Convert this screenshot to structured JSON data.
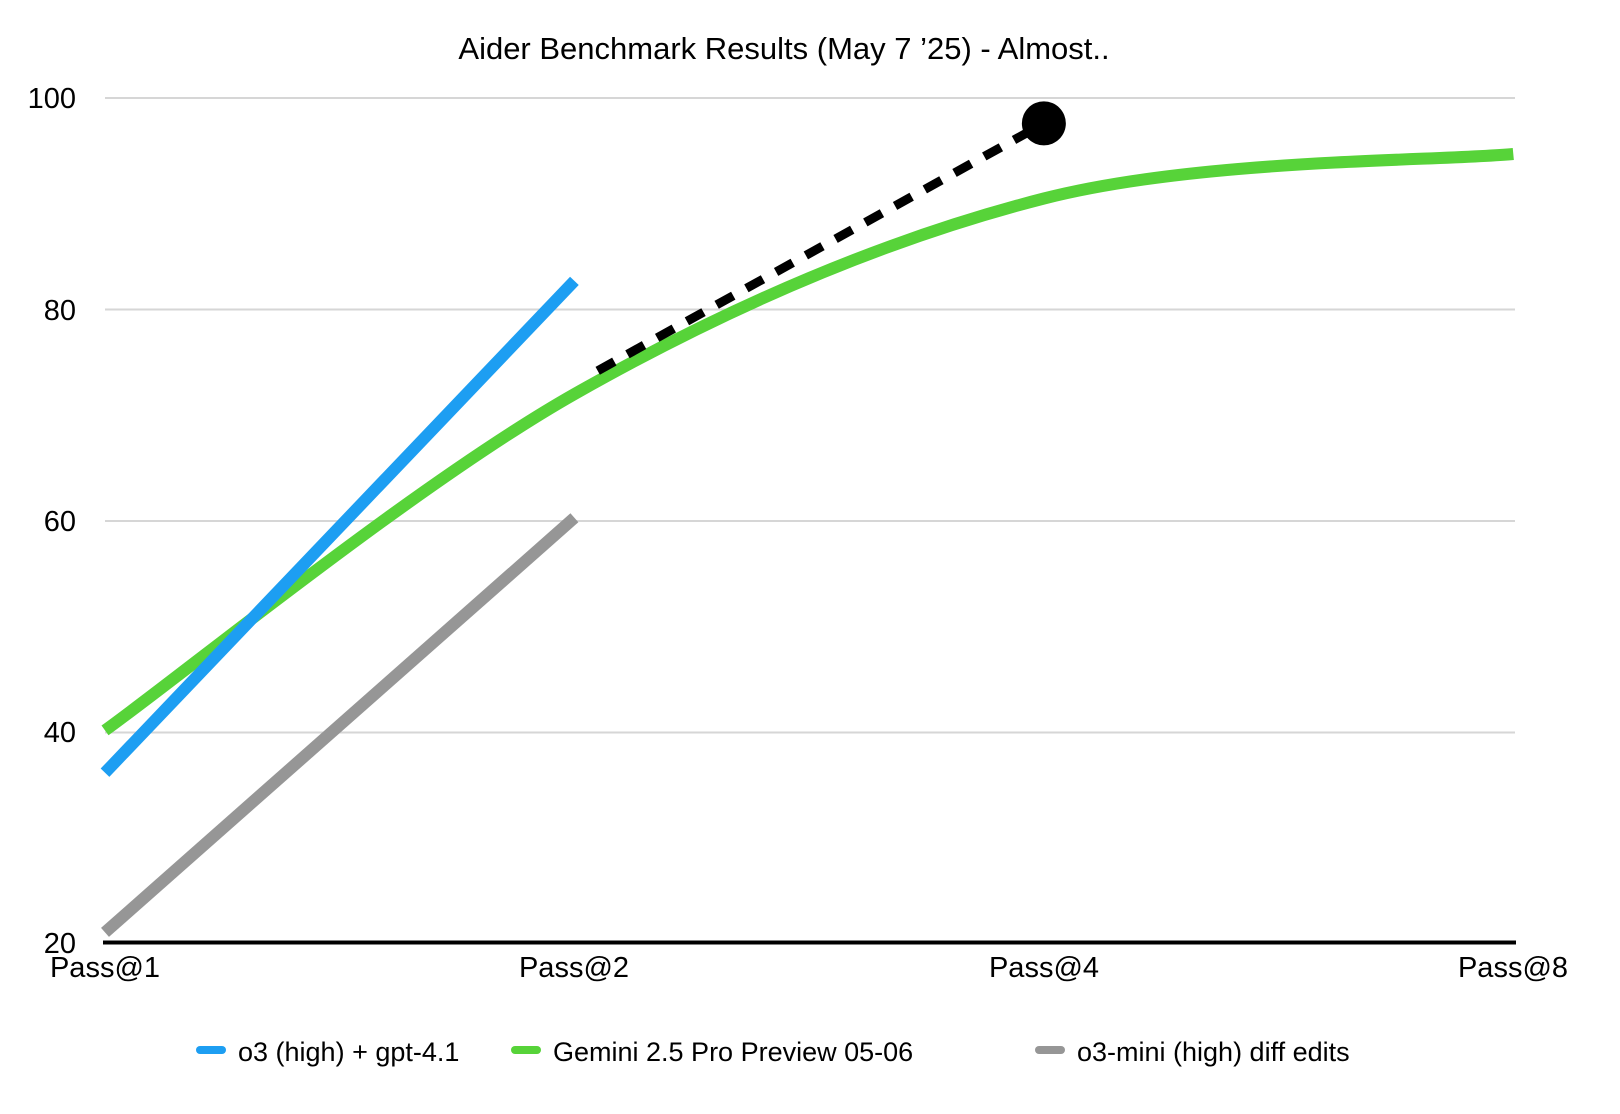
{
  "chart_data": {
    "type": "line",
    "title": "Aider Benchmark Results (May 7 ’25) - Almost..",
    "x_axis": {
      "scale": "log2",
      "categories": [
        "Pass@1",
        "Pass@2",
        "Pass@4",
        "Pass@8"
      ],
      "category_positions": [
        1,
        2,
        4,
        8
      ]
    },
    "y_axis": {
      "ticks": [
        20,
        40,
        60,
        80,
        100
      ],
      "range": [
        20,
        100
      ],
      "gridlines": true,
      "gridline_color": "#d6d6d6",
      "axis_color": "#000000"
    },
    "series": [
      {
        "name": "o3 (high) + gpt-4.1",
        "color": "#1d9ef2",
        "style": "solid",
        "x": [
          1,
          2
        ],
        "values": [
          36.2,
          82.7
        ]
      },
      {
        "name": "Gemini 2.5 Pro Preview 05-06",
        "color": "#57d339",
        "style": "solid",
        "smooth": true,
        "x": [
          1,
          2,
          4,
          8
        ],
        "values": [
          40.2,
          72.0,
          90.5,
          94.7
        ]
      },
      {
        "name": "o3-mini (high) diff edits",
        "color": "#969696",
        "style": "solid",
        "x": [
          1,
          2
        ],
        "values": [
          21.1,
          60.3
        ]
      }
    ],
    "annotations": [
      {
        "name": "dashed-projection-line",
        "type": "dashed-line",
        "color": "#000000",
        "x": [
          2.07,
          4.0
        ],
        "values": [
          74.2,
          97.6
        ]
      },
      {
        "name": "projection-endpoint-dot",
        "type": "point",
        "color": "#000000",
        "x": 4.0,
        "value": 97.6
      }
    ],
    "legend_position": "bottom"
  }
}
